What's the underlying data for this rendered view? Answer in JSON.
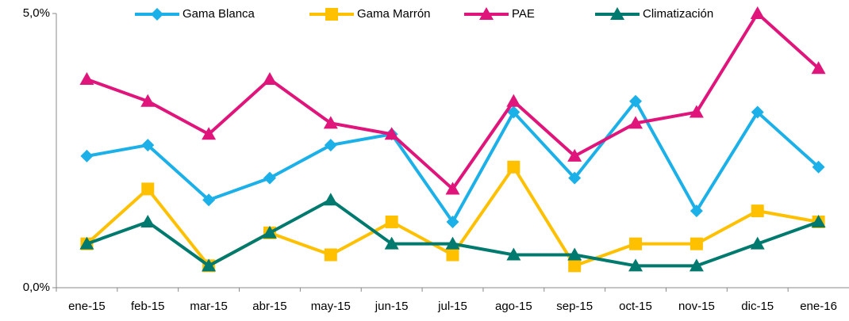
{
  "chart_data": {
    "type": "line",
    "categories": [
      "ene-15",
      "feb-15",
      "mar-15",
      "abr-15",
      "may-15",
      "jun-15",
      "jul-15",
      "ago-15",
      "sep-15",
      "oct-15",
      "nov-15",
      "dic-15",
      "ene-16"
    ],
    "series": [
      {
        "name": "Gama Blanca",
        "color": "#1cb0e8",
        "marker": "diamond",
        "values": [
          2.4,
          2.6,
          1.6,
          2.0,
          2.6,
          2.8,
          1.2,
          3.2,
          2.0,
          3.4,
          1.4,
          3.2,
          2.2
        ]
      },
      {
        "name": "Gama Marrón",
        "color": "#ffc000",
        "marker": "square",
        "values": [
          0.8,
          1.8,
          0.4,
          1.0,
          0.6,
          1.2,
          0.6,
          2.2,
          0.4,
          0.8,
          0.8,
          1.4,
          1.2
        ]
      },
      {
        "name": "PAE",
        "color": "#e0157b",
        "marker": "triangle",
        "values": [
          3.8,
          3.4,
          2.8,
          3.8,
          3.0,
          2.8,
          1.8,
          3.4,
          2.4,
          3.0,
          3.2,
          5.0,
          4.0
        ]
      },
      {
        "name": "Climatización",
        "color": "#007a6e",
        "marker": "triangle",
        "values": [
          0.8,
          1.2,
          0.4,
          1.0,
          1.6,
          0.8,
          0.8,
          0.6,
          0.6,
          0.4,
          0.4,
          0.8,
          1.2
        ]
      }
    ],
    "ylim": [
      0,
      5
    ],
    "yticks": [
      {
        "value": 0,
        "label": "0,0%"
      },
      {
        "value": 5,
        "label": "5,0%"
      }
    ],
    "legend": "top"
  }
}
